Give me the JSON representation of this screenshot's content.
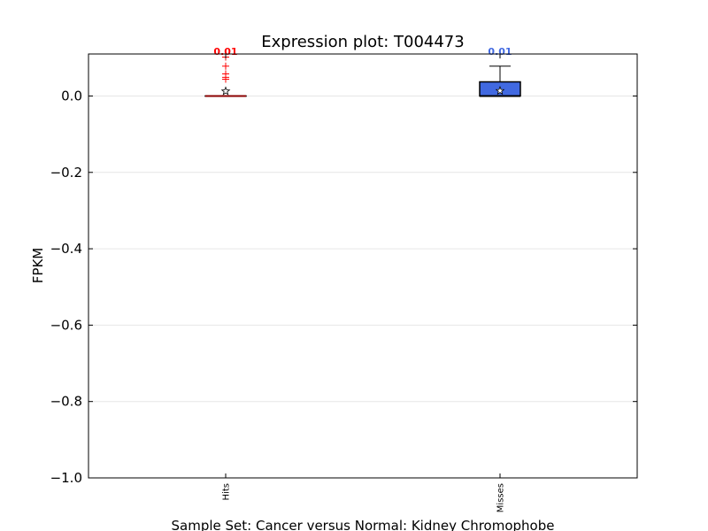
{
  "chart_data": {
    "type": "box",
    "title": "Expression plot: T004473",
    "xlabel": "Sample Set: Cancer versus Normal: Kidney Chromophobe",
    "ylabel": "FPKM",
    "ylim": [
      -1.0,
      0.11
    ],
    "yticks": [
      0.0,
      -0.2,
      -0.4,
      -0.6,
      -0.8,
      -1.0
    ],
    "ytick_labels": [
      "0.0",
      "−0.2",
      "−0.4",
      "−0.6",
      "−0.8",
      "−1.0"
    ],
    "grid": true,
    "categories": [
      "Hits",
      "Misses"
    ],
    "series": [
      {
        "category": "Hits",
        "color": "#ff0000",
        "box_fill": "#ffffff",
        "min": 0.0,
        "q1": 0.0,
        "median": 0.0,
        "q3": 0.0,
        "max": 0.0,
        "mean": 0.0125,
        "outliers": [
          0.102,
          0.078,
          0.058,
          0.049,
          0.044
        ],
        "label": "0.01"
      },
      {
        "category": "Misses",
        "color": "#4169e1",
        "box_fill": "#4169e1",
        "min": 0.0,
        "q1": 0.0,
        "median": 0.0,
        "q3": 0.037,
        "max": 0.078,
        "mean": 0.0135,
        "outliers": [],
        "label": "0.01"
      }
    ]
  }
}
